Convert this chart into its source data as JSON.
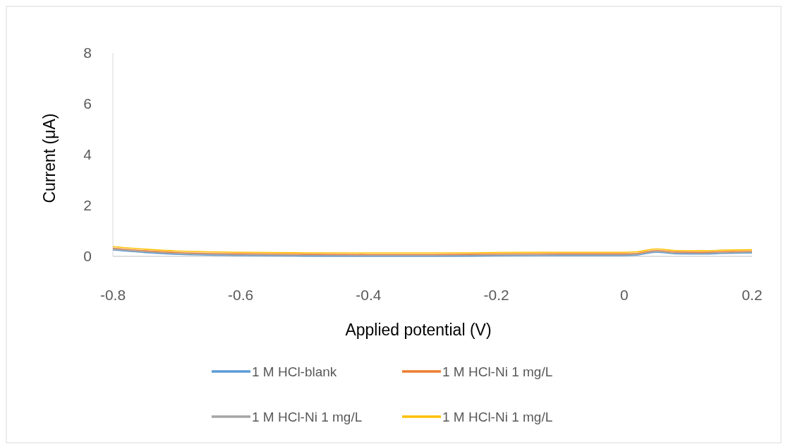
{
  "chart_data": {
    "type": "line",
    "xlabel": "Applied potential (V)",
    "ylabel": "Current (μA)",
    "x": [
      -0.8,
      -0.75,
      -0.7,
      -0.6,
      -0.5,
      -0.4,
      -0.3,
      -0.2,
      -0.1,
      0,
      0.02,
      0.05,
      0.08,
      0.12,
      0.15,
      0.2
    ],
    "xlim": [
      -0.8,
      0.2
    ],
    "xticks": [
      -0.8,
      -0.6,
      -0.4,
      -0.2,
      0,
      0.2
    ],
    "ylim": [
      0,
      8
    ],
    "yticks": [
      0,
      2,
      4,
      6,
      8
    ],
    "grid": false,
    "legend": "bottom",
    "marker": "none",
    "line_style": "solid",
    "series": [
      {
        "name": "1 M HCl-blank",
        "color": "#5b9bd5",
        "values": [
          0.25,
          0.15,
          0.08,
          0.03,
          0.01,
          0,
          0,
          0.02,
          0.03,
          0.03,
          0.05,
          0.16,
          0.1,
          0.09,
          0.11,
          0.13
        ]
      },
      {
        "name": "1 M HCl-Ni 1 mg/L",
        "color": "#ed7d31",
        "values": [
          0.32,
          0.22,
          0.15,
          0.1,
          0.08,
          0.07,
          0.07,
          0.09,
          0.1,
          0.1,
          0.12,
          0.23,
          0.17,
          0.16,
          0.18,
          0.2
        ]
      },
      {
        "name": "1 M HCl-Ni 1 mg/L",
        "color": "#a5a5a5",
        "values": [
          0.28,
          0.18,
          0.11,
          0.06,
          0.04,
          0.03,
          0.03,
          0.05,
          0.06,
          0.06,
          0.08,
          0.19,
          0.13,
          0.12,
          0.14,
          0.16
        ]
      },
      {
        "name": "1 M HCl-Ni 1 mg/L",
        "color": "#ffc000",
        "values": [
          0.38,
          0.28,
          0.21,
          0.16,
          0.14,
          0.13,
          0.13,
          0.15,
          0.16,
          0.16,
          0.18,
          0.29,
          0.23,
          0.22,
          0.24,
          0.26
        ]
      }
    ]
  }
}
